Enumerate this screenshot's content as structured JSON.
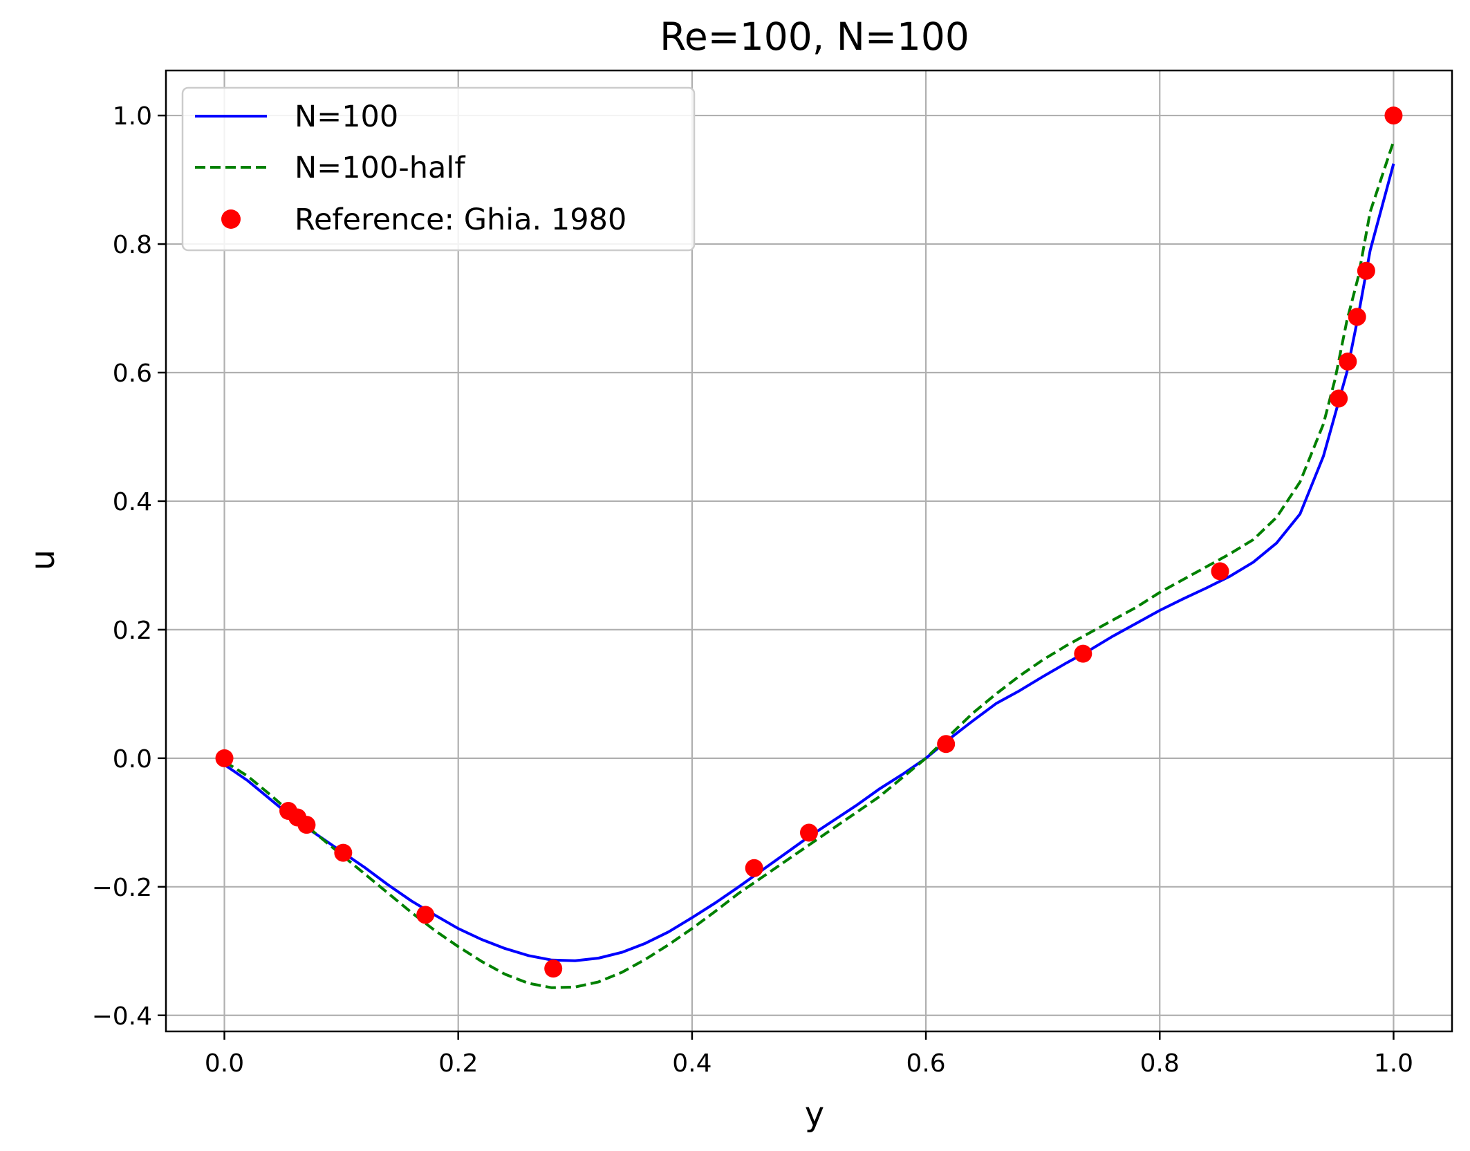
{
  "chart_data": {
    "type": "line",
    "title": "Re=100, N=100",
    "xlabel": "y",
    "ylabel": "u",
    "xlim": [
      -0.05,
      1.05
    ],
    "ylim": [
      -0.425,
      1.07
    ],
    "xticks": [
      0.0,
      0.2,
      0.4,
      0.6,
      0.8,
      1.0
    ],
    "xtick_labels": [
      "0.0",
      "0.2",
      "0.4",
      "0.6",
      "0.8",
      "1.0"
    ],
    "yticks": [
      -0.4,
      -0.2,
      0.0,
      0.2,
      0.4,
      0.6,
      0.8,
      1.0
    ],
    "ytick_labels": [
      "−0.4",
      "−0.2",
      "0.0",
      "0.2",
      "0.4",
      "0.6",
      "0.8",
      "1.0"
    ],
    "grid": true,
    "legend_position": "upper-left",
    "series": [
      {
        "name": "N=100",
        "style": "solid",
        "color": "#0000ff",
        "x": [
          0.0,
          0.02,
          0.04,
          0.06,
          0.08,
          0.1,
          0.12,
          0.14,
          0.16,
          0.18,
          0.2,
          0.22,
          0.24,
          0.26,
          0.28,
          0.3,
          0.32,
          0.34,
          0.36,
          0.38,
          0.4,
          0.42,
          0.44,
          0.46,
          0.48,
          0.5,
          0.52,
          0.54,
          0.56,
          0.58,
          0.6,
          0.62,
          0.64,
          0.66,
          0.68,
          0.7,
          0.72,
          0.74,
          0.76,
          0.78,
          0.8,
          0.82,
          0.84,
          0.86,
          0.88,
          0.9,
          0.92,
          0.94,
          0.96,
          0.97,
          0.98,
          1.0
        ],
        "y": [
          -0.01,
          -0.035,
          -0.065,
          -0.095,
          -0.12,
          -0.145,
          -0.17,
          -0.197,
          -0.222,
          -0.244,
          -0.265,
          -0.282,
          -0.296,
          -0.307,
          -0.314,
          -0.315,
          -0.311,
          -0.302,
          -0.288,
          -0.27,
          -0.248,
          -0.225,
          -0.2,
          -0.174,
          -0.148,
          -0.122,
          -0.098,
          -0.074,
          -0.048,
          -0.025,
          0.0,
          0.03,
          0.058,
          0.085,
          0.105,
          0.127,
          0.148,
          0.168,
          0.19,
          0.21,
          0.23,
          0.248,
          0.265,
          0.283,
          0.305,
          0.335,
          0.38,
          0.47,
          0.6,
          0.69,
          0.79,
          0.925
        ]
      },
      {
        "name": "N=100-half",
        "style": "dashed",
        "color": "#008000",
        "x": [
          0.0,
          0.02,
          0.04,
          0.06,
          0.08,
          0.1,
          0.12,
          0.14,
          0.16,
          0.18,
          0.2,
          0.22,
          0.24,
          0.26,
          0.28,
          0.3,
          0.32,
          0.34,
          0.36,
          0.38,
          0.4,
          0.42,
          0.44,
          0.46,
          0.48,
          0.5,
          0.52,
          0.54,
          0.56,
          0.58,
          0.6,
          0.62,
          0.64,
          0.66,
          0.68,
          0.7,
          0.72,
          0.74,
          0.76,
          0.78,
          0.8,
          0.82,
          0.84,
          0.86,
          0.88,
          0.9,
          0.92,
          0.94,
          0.95,
          0.96,
          0.97,
          0.98,
          1.0
        ],
        "y": [
          -0.005,
          -0.028,
          -0.058,
          -0.09,
          -0.12,
          -0.15,
          -0.18,
          -0.21,
          -0.24,
          -0.268,
          -0.293,
          -0.316,
          -0.336,
          -0.35,
          -0.357,
          -0.356,
          -0.348,
          -0.333,
          -0.313,
          -0.29,
          -0.265,
          -0.238,
          -0.21,
          -0.185,
          -0.16,
          -0.135,
          -0.11,
          -0.085,
          -0.06,
          -0.03,
          0.0,
          0.035,
          0.07,
          0.1,
          0.128,
          0.153,
          0.175,
          0.195,
          0.215,
          0.235,
          0.258,
          0.278,
          0.298,
          0.318,
          0.34,
          0.375,
          0.43,
          0.52,
          0.59,
          0.68,
          0.75,
          0.85,
          0.96
        ]
      },
      {
        "name": "Reference: Ghia. 1980",
        "style": "markers",
        "color": "#ff0000",
        "x": [
          0.0,
          0.0547,
          0.0625,
          0.0703,
          0.1016,
          0.1719,
          0.2813,
          0.4531,
          0.5,
          0.6172,
          0.7344,
          0.8516,
          0.9531,
          0.9609,
          0.9688,
          0.9766,
          1.0
        ],
        "y": [
          0.0,
          -0.0819,
          -0.0921,
          -0.1036,
          -0.1471,
          -0.2436,
          -0.3273,
          -0.1709,
          -0.1158,
          0.0221,
          0.1626,
          0.2909,
          0.5597,
          0.6172,
          0.6867,
          0.7584,
          1.0
        ]
      }
    ]
  }
}
